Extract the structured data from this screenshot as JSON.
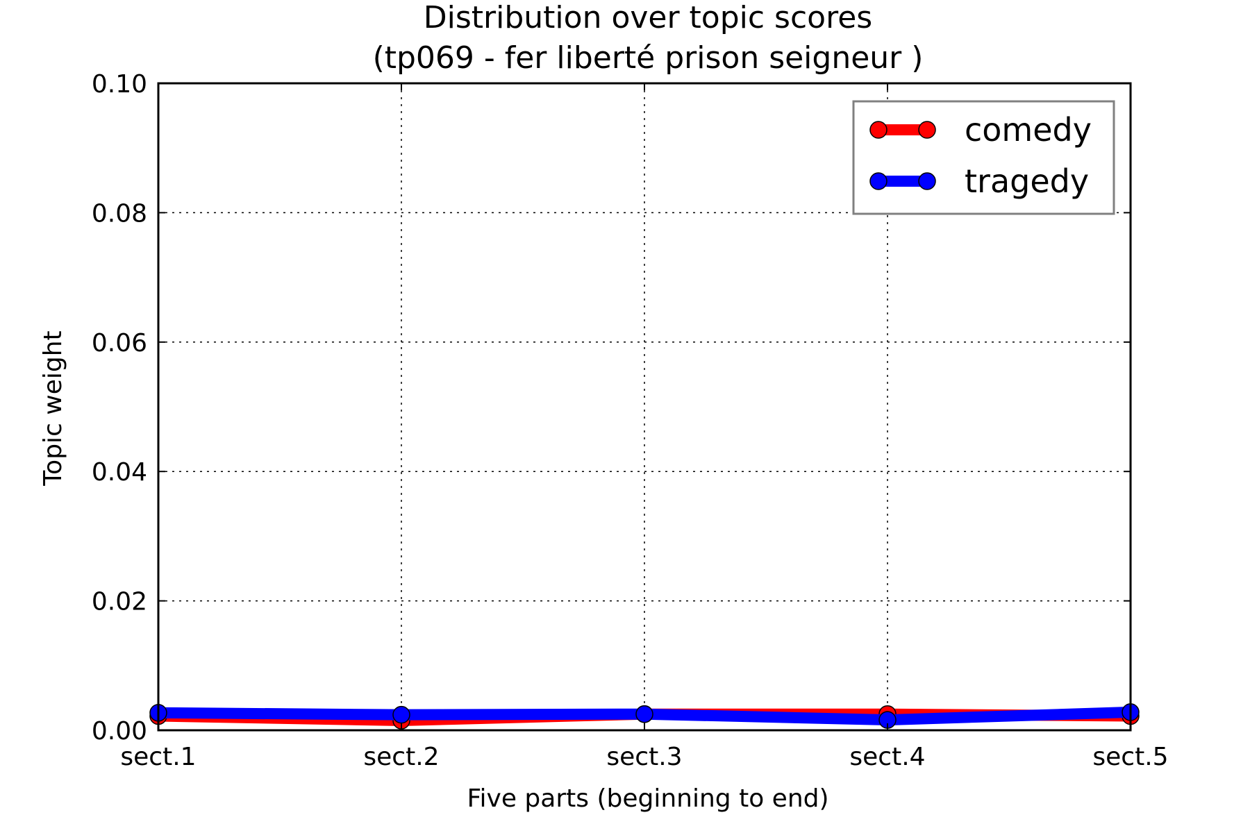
{
  "chart_data": {
    "type": "line",
    "title": "Distribution over topic scores",
    "subtitle": "(tp069 - fer liberté prison seigneur )",
    "xlabel": "Five parts (beginning to end)",
    "ylabel": "Topic weight",
    "categories": [
      "sect.1",
      "sect.2",
      "sect.3",
      "sect.4",
      "sect.5"
    ],
    "yticks": [
      "0.00",
      "0.02",
      "0.04",
      "0.06",
      "0.08",
      "0.10"
    ],
    "ylim": [
      0,
      0.1
    ],
    "grid": true,
    "legend_position": "top-right",
    "series": [
      {
        "name": "comedy",
        "color": "#ff0000",
        "values": [
          0.0022,
          0.0015,
          0.0025,
          0.0025,
          0.0022
        ]
      },
      {
        "name": "tragedy",
        "color": "#0000ff",
        "values": [
          0.0027,
          0.0024,
          0.0025,
          0.0016,
          0.0028
        ]
      }
    ]
  }
}
